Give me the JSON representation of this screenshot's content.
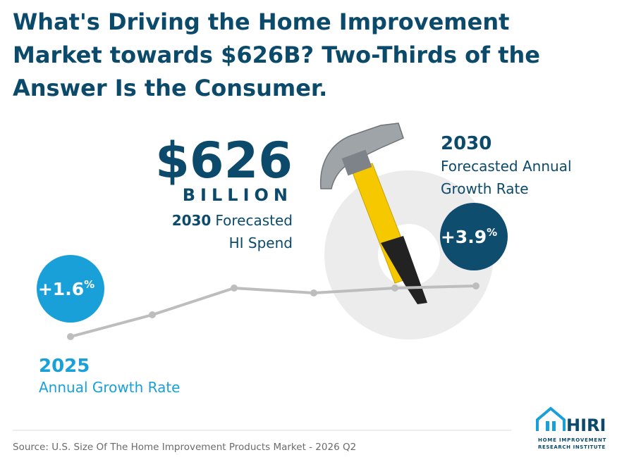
{
  "title_lines": [
    "What's Driving the Home Improvement",
    "Market towards $626B? Two-Thirds of the",
    "Answer Is the Consumer."
  ],
  "headline": {
    "amount": "$626",
    "unit": "BILLION",
    "year": "2030",
    "label_lines": [
      "Forecasted",
      "HI Spend"
    ]
  },
  "growth_2030": {
    "year": "2030",
    "label_lines": [
      "Forecasted Annual",
      "Growth Rate"
    ],
    "value": "+3.9",
    "suffix": "%"
  },
  "growth_2025": {
    "year": "2025",
    "label": "Annual Growth Rate",
    "value": "+1.6",
    "suffix": "%"
  },
  "source": "Source: U.S. Size Of The Home Improvement Products Market - 2026 Q2",
  "logo": {
    "name": "HIRI",
    "tagline_lines": [
      "HOME IMPROVEMENT",
      "RESEARCH INSTITUTE"
    ]
  }
}
